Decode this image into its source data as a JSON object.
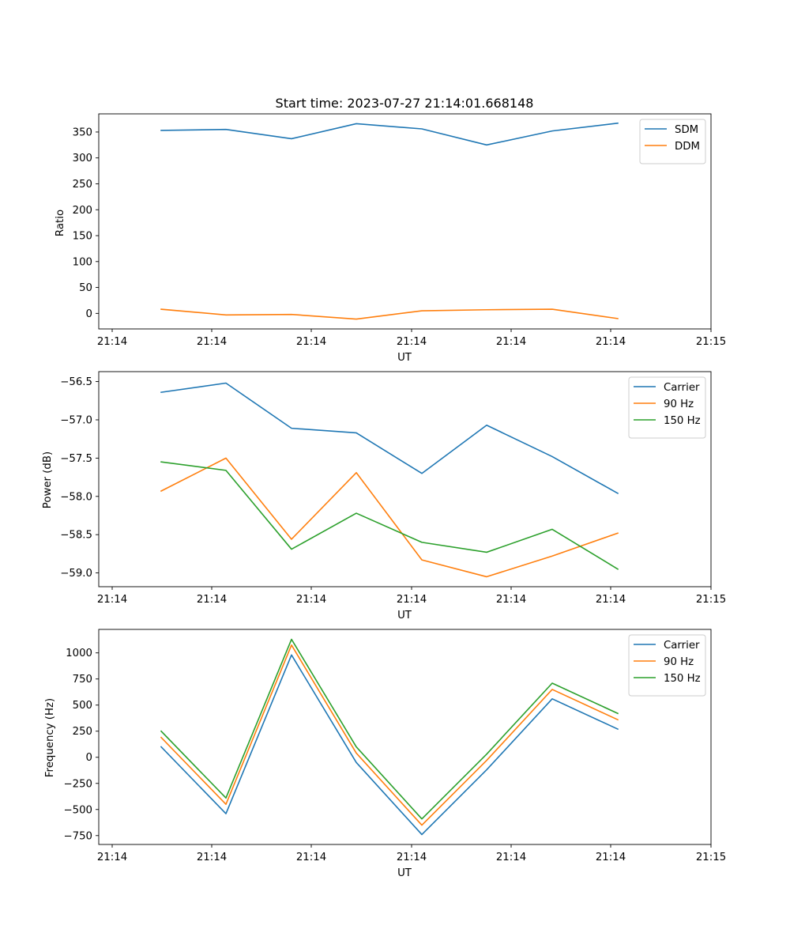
{
  "chart_data": [
    {
      "type": "line",
      "title": "Start time: 2023-07-27 21:14:01.668148",
      "xlabel": "UT",
      "ylabel": "Ratio",
      "x_tick_labels": [
        "21:14",
        "21:14",
        "21:14",
        "21:14",
        "21:14",
        "21:14",
        "21:14"
      ],
      "x_end_tick_label": "21:15",
      "yticks": [
        0,
        50,
        100,
        150,
        200,
        250,
        300,
        350
      ],
      "ylim": [
        -30,
        385
      ],
      "legend_position": "top-right",
      "series": [
        {
          "name": "SDM",
          "color": "#1f77b4",
          "values": [
            353,
            355,
            337,
            366,
            356,
            325,
            352,
            367
          ]
        },
        {
          "name": "DDM",
          "color": "#ff7f0e",
          "values": [
            8,
            -3,
            -2,
            -11,
            5,
            7,
            8,
            -10
          ]
        }
      ]
    },
    {
      "type": "line",
      "title": "",
      "xlabel": "UT",
      "ylabel": "Power (dB)",
      "x_tick_labels": [
        "21:14",
        "21:14",
        "21:14",
        "21:14",
        "21:14",
        "21:14",
        "21:14"
      ],
      "x_end_tick_label": "21:15",
      "yticks": [
        -59.0,
        -58.5,
        -58.0,
        -57.5,
        -57.0,
        -56.5
      ],
      "ytick_labels": [
        "−59.0",
        "−58.5",
        "−58.0",
        "−57.5",
        "−57.0",
        "−56.5"
      ],
      "ylim": [
        -59.18,
        -56.37
      ],
      "legend_position": "top-right",
      "series": [
        {
          "name": "Carrier",
          "color": "#1f77b4",
          "values": [
            -56.64,
            -56.52,
            -57.11,
            -57.17,
            -57.7,
            -57.07,
            -57.48,
            -57.96
          ]
        },
        {
          "name": "90 Hz",
          "color": "#ff7f0e",
          "values": [
            -57.93,
            -57.5,
            -58.56,
            -57.69,
            -58.83,
            -59.05,
            -58.78,
            -58.48
          ]
        },
        {
          "name": "150 Hz",
          "color": "#2ca02c",
          "values": [
            -57.55,
            -57.66,
            -58.69,
            -58.22,
            -58.6,
            -58.73,
            -58.43,
            -58.95
          ]
        }
      ]
    },
    {
      "type": "line",
      "title": "",
      "xlabel": "UT",
      "ylabel": "Frequency (Hz)",
      "x_tick_labels": [
        "21:14",
        "21:14",
        "21:14",
        "21:14",
        "21:14",
        "21:14",
        "21:14"
      ],
      "x_end_tick_label": "21:15",
      "yticks": [
        -750,
        -500,
        -250,
        0,
        250,
        500,
        750,
        1000
      ],
      "ytick_labels": [
        "−750",
        "−500",
        "−250",
        "0",
        "250",
        "500",
        "750",
        "1000"
      ],
      "ylim": [
        -835,
        1225
      ],
      "legend_position": "top-right",
      "series": [
        {
          "name": "Carrier",
          "color": "#1f77b4",
          "values": [
            100,
            -540,
            980,
            -50,
            -740,
            -120,
            560,
            270
          ]
        },
        {
          "name": "90 Hz",
          "color": "#ff7f0e",
          "values": [
            190,
            -450,
            1075,
            40,
            -650,
            -30,
            650,
            360
          ]
        },
        {
          "name": "150 Hz",
          "color": "#2ca02c",
          "values": [
            250,
            -390,
            1130,
            100,
            -590,
            30,
            710,
            420
          ]
        }
      ]
    }
  ]
}
